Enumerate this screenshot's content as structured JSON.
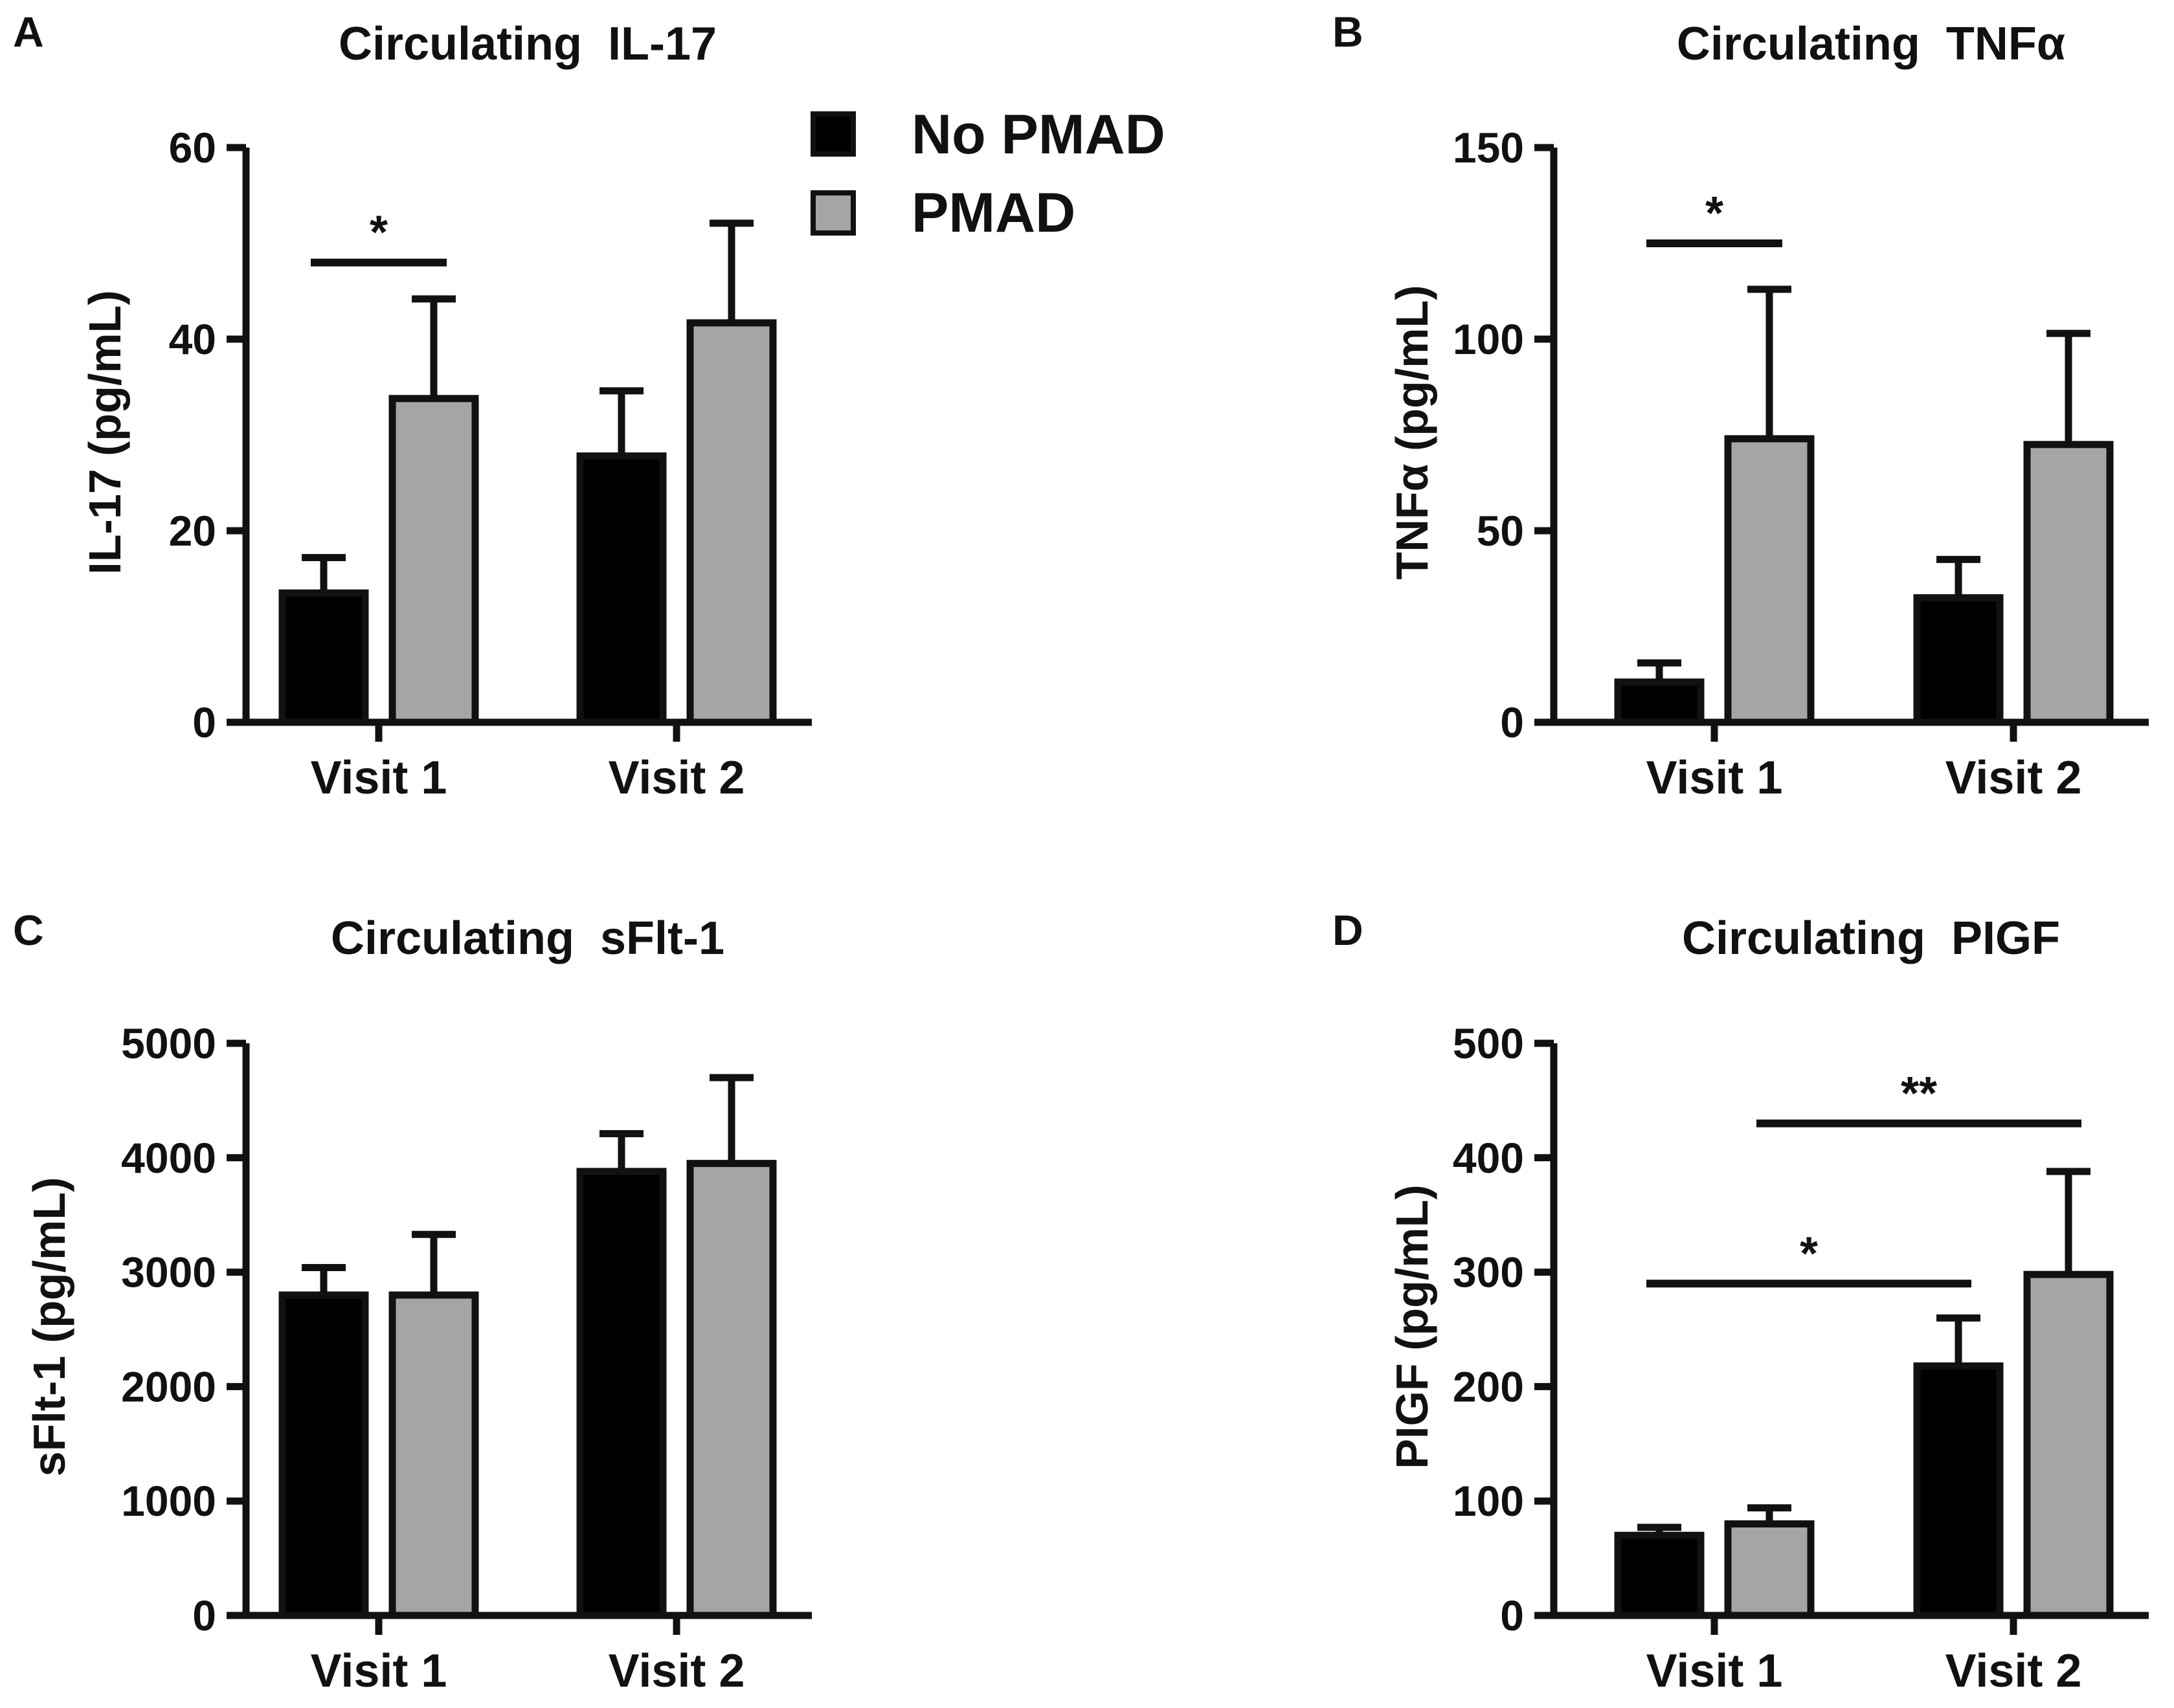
{
  "colors": {
    "no_pmad": "#000000",
    "pmad": "#a5a5a5",
    "outline": "#111111"
  },
  "legend": {
    "items": [
      {
        "label": "No PMAD",
        "color": "#000000"
      },
      {
        "label": "PMAD",
        "color": "#a5a5a5"
      }
    ]
  },
  "chart_data": [
    {
      "panel": "A",
      "type": "bar",
      "title": "Circulating  IL-17",
      "ylabel": "IL-17 (pg/mL)",
      "xlabel": "",
      "categories": [
        "Visit 1",
        "Visit 2"
      ],
      "ylim": [
        0,
        60
      ],
      "yticks": [
        0,
        20,
        40,
        60
      ],
      "series": [
        {
          "name": "No PMAD",
          "values": [
            13.5,
            27.8
          ],
          "errors": [
            3.7,
            6.8
          ]
        },
        {
          "name": "PMAD",
          "values": [
            33.8,
            41.7
          ],
          "errors": [
            10.4,
            10.4
          ]
        }
      ],
      "significance": [
        {
          "label": "*",
          "from": [
            0,
            0
          ],
          "to": [
            0,
            1
          ],
          "y": 48
        }
      ]
    },
    {
      "panel": "B",
      "type": "bar",
      "title": "Circulating  TNFα",
      "ylabel": "TNFα (pg/mL)",
      "xlabel": "",
      "categories": [
        "Visit 1",
        "Visit 2"
      ],
      "ylim": [
        0,
        150
      ],
      "yticks": [
        0,
        50,
        100,
        150
      ],
      "series": [
        {
          "name": "No PMAD",
          "values": [
            10.5,
            32.5
          ],
          "errors": [
            5.0,
            10.0
          ]
        },
        {
          "name": "PMAD",
          "values": [
            74.0,
            72.5
          ],
          "errors": [
            39.0,
            29.0
          ]
        }
      ],
      "significance": [
        {
          "label": "*",
          "from": [
            0,
            0
          ],
          "to": [
            0,
            1
          ],
          "y": 125
        }
      ]
    },
    {
      "panel": "C",
      "type": "bar",
      "title": "Circulating  sFlt-1",
      "ylabel": "sFlt-1 (pg/mL)",
      "xlabel": "",
      "categories": [
        "Visit 1",
        "Visit 2"
      ],
      "ylim": [
        0,
        5000
      ],
      "yticks": [
        0,
        1000,
        2000,
        3000,
        4000,
        5000
      ],
      "series": [
        {
          "name": "No PMAD",
          "values": [
            2800,
            3880
          ],
          "errors": [
            240,
            330
          ]
        },
        {
          "name": "PMAD",
          "values": [
            2800,
            3950
          ],
          "errors": [
            530,
            750
          ]
        }
      ],
      "significance": []
    },
    {
      "panel": "D",
      "type": "bar",
      "title": "Circulating  PIGF",
      "ylabel": "PIGF (pg/mL)",
      "xlabel": "",
      "categories": [
        "Visit 1",
        "Visit 2"
      ],
      "ylim": [
        0,
        500
      ],
      "yticks": [
        0,
        100,
        200,
        300,
        400,
        500
      ],
      "series": [
        {
          "name": "No PMAD",
          "values": [
            70,
            218
          ],
          "errors": [
            7,
            42
          ]
        },
        {
          "name": "PMAD",
          "values": [
            80,
            298
          ],
          "errors": [
            14,
            90
          ]
        }
      ],
      "significance": [
        {
          "label": "**",
          "from": [
            0,
            1
          ],
          "to": [
            1,
            1
          ],
          "y": 430
        },
        {
          "label": "*",
          "from": [
            0,
            0
          ],
          "to": [
            1,
            0
          ],
          "y": 290
        }
      ]
    }
  ]
}
